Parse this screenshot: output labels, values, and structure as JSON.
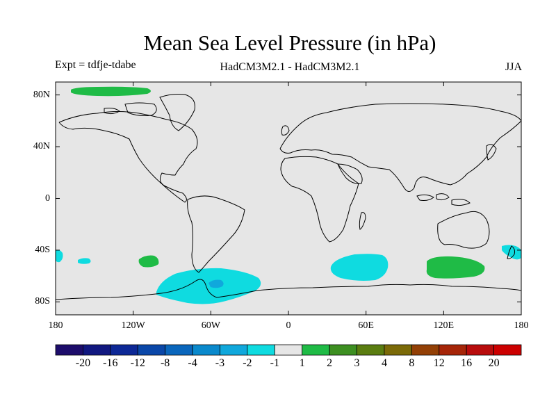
{
  "header": {
    "title": "Mean Sea Level Pressure (in hPa)",
    "expt": "Expt = tdfje-tdabe",
    "model": "HadCM3M2.1 - HadCM3M2.1",
    "season": "JJA"
  },
  "axes": {
    "lat_labels": [
      "80N",
      "40N",
      "0",
      "40S",
      "80S"
    ],
    "lat_values": [
      80,
      40,
      0,
      -40,
      -80
    ],
    "lon_labels": [
      "180",
      "120W",
      "60W",
      "0",
      "60E",
      "120E",
      "180"
    ],
    "lon_values": [
      -180,
      -120,
      -60,
      0,
      60,
      120,
      180
    ]
  },
  "colorbar": {
    "labels": [
      "-20",
      "-16",
      "-12",
      "-8",
      "-4",
      "-3",
      "-2",
      "-1",
      "1",
      "2",
      "3",
      "4",
      "8",
      "12",
      "16",
      "20"
    ],
    "colors": [
      "#1d0d6b",
      "#111880",
      "#0d2896",
      "#0a47a8",
      "#0a66bc",
      "#0a89cc",
      "#10a8dc",
      "#0fdbe0",
      "#e6e6e6",
      "#1fbb46",
      "#3d8f21",
      "#5a7d10",
      "#7b6a08",
      "#934006",
      "#a62508",
      "#b80c0c",
      "#cc0000"
    ]
  },
  "colors": {
    "ocean_background": "#e6e6e6",
    "positive_1_2": "#1fbb46",
    "negative_1_2": "#0fdbe0",
    "negative_2_3": "#10a8dc",
    "coast": "#000000"
  },
  "chart_data": {
    "type": "contour-map",
    "variable": "Mean Sea Level Pressure difference",
    "units": "hPa",
    "levels": [
      -20,
      -16,
      -12,
      -8,
      -4,
      -3,
      -2,
      -1,
      1,
      2,
      3,
      4,
      8,
      12,
      16,
      20
    ],
    "lat_range": [
      -90,
      90
    ],
    "lon_range": [
      -180,
      180
    ],
    "regions": [
      {
        "name": "arctic-positive",
        "range": "1 to 2",
        "lon": [
          -170,
          -115
        ],
        "lat": [
          80,
          85
        ]
      },
      {
        "name": "south-pacific-positive",
        "range": "1 to 2",
        "lon": [
          -115,
          -100
        ],
        "lat": [
          -52,
          -45
        ]
      },
      {
        "name": "south-indian-positive",
        "range": "1 to 2",
        "lon": [
          105,
          152
        ],
        "lat": [
          -62,
          -44
        ]
      },
      {
        "name": "antarctic-peninsula-negative",
        "range": "-2 to -1",
        "lon": [
          -100,
          -20
        ],
        "lat": [
          -84,
          -55
        ]
      },
      {
        "name": "antarctic-peninsula-core",
        "range": "-3 to -2",
        "lon": [
          -65,
          -55
        ],
        "lat": [
          -68,
          -63
        ]
      },
      {
        "name": "south-atlantic-indian-negative",
        "range": "-2 to -1",
        "lon": [
          33,
          77
        ],
        "lat": [
          -63,
          -42
        ]
      },
      {
        "name": "far-west-pacific-negative",
        "range": "-2 to -1",
        "lon": [
          -180,
          -173
        ],
        "lat": [
          -48,
          -40
        ]
      },
      {
        "name": "central-pacific-negative",
        "range": "-2 to -1",
        "lon": [
          -165,
          -155
        ],
        "lat": [
          -48,
          -45
        ]
      },
      {
        "name": "tasman-negative",
        "range": "-2 to -1",
        "lon": [
          168,
          180
        ],
        "lat": [
          -48,
          -35
        ]
      }
    ]
  }
}
